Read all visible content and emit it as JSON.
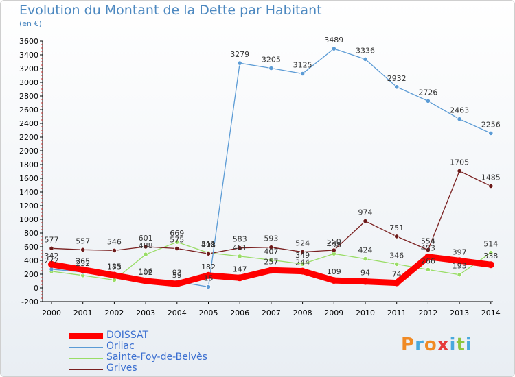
{
  "chart_data": {
    "type": "line",
    "title": "Evolution du Montant de la Dette par Habitant",
    "subtitle": "(en €)",
    "xlabel": "",
    "ylabel": "",
    "x": [
      "2000",
      "2001",
      "2002",
      "2003",
      "2004",
      "2005",
      "2006",
      "2007",
      "2008",
      "2009",
      "2010",
      "2011",
      "2012",
      "2013",
      "2014"
    ],
    "ylim": [
      -200,
      3600
    ],
    "yticks": [
      -200,
      0,
      200,
      400,
      600,
      800,
      1000,
      1200,
      1400,
      1600,
      1800,
      2000,
      2200,
      2400,
      2600,
      2800,
      3000,
      3200,
      3400,
      3600
    ],
    "grid": false,
    "legend": "bottom-left",
    "series": [
      {
        "name": "DOISSAT",
        "color": "#ff0000",
        "values": [
          342,
          265,
          185,
          102,
          59,
          182,
          147,
          257,
          244,
          109,
          94,
          74,
          453,
          397,
          338
        ],
        "labels": [
          "342",
          "265",
          "185",
          "102",
          "59",
          "182",
          "147",
          "257",
          "244",
          "109",
          "94",
          "74",
          "453",
          "397",
          "338"
        ]
      },
      {
        "name": "Orliac",
        "color": "#5b9bd5",
        "values": [
          272,
          232,
          173,
          116,
          93,
          15,
          3279,
          3205,
          3125,
          3489,
          3336,
          2932,
          2726,
          2463,
          2256
        ],
        "labels": [
          "272",
          "232",
          "173",
          "116",
          "93",
          "15",
          "3279",
          "3205",
          "3125",
          "3489",
          "3336",
          "2932",
          "2726",
          "2463",
          "2256"
        ]
      },
      {
        "name": "Sainte-Foy-de-Belvès",
        "color": "#99dd66",
        "values": [
          241,
          182,
          115,
          488,
          669,
          511,
          461,
          407,
          349,
          498,
          424,
          346,
          266,
          193,
          514
        ],
        "labels": [
          "",
          "",
          "",
          "488",
          "669",
          "511",
          "461",
          "407",
          "349",
          "498",
          "424",
          "346",
          "266",
          "193",
          "514"
        ]
      },
      {
        "name": "Grives",
        "color": "#7a2020",
        "values": [
          577,
          557,
          546,
          601,
          575,
          498,
          583,
          593,
          524,
          550,
          974,
          751,
          554,
          1705,
          1485
        ],
        "labels": [
          "577",
          "557",
          "546",
          "601",
          "575",
          "498",
          "583",
          "593",
          "524",
          "550",
          "974",
          "751",
          "554",
          "1705",
          "1485"
        ]
      }
    ]
  },
  "brand": {
    "logo_text": "Proxiti",
    "colors": [
      "#f08a24",
      "#49a9dd",
      "#f08a24",
      "#e63c3c",
      "#49a9dd",
      "#8cc63f",
      "#49a9dd"
    ]
  }
}
